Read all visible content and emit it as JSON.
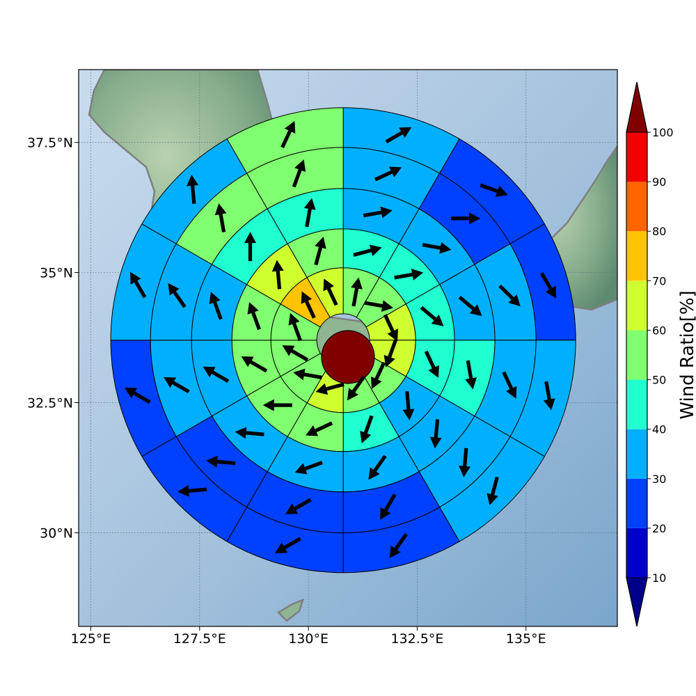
{
  "map": {
    "x_ticks": [
      "125°E",
      "127.5°E",
      "130°E",
      "132.5°E",
      "135°E"
    ],
    "y_ticks": [
      "37.5°N",
      "35°N",
      "32.5°N",
      "30°N"
    ],
    "lon_values": [
      125,
      127.5,
      130,
      132.5,
      135
    ],
    "lat_values": [
      37.5,
      35,
      32.5,
      30
    ],
    "extent": {
      "lon": [
        124.72,
        137.1
      ],
      "lat": [
        28.2,
        38.9
      ]
    },
    "center": {
      "lon": 130.8,
      "lat": 33.7
    },
    "grid": "dotted",
    "sea_color": "#9dbcd8",
    "land_color": "#7fa88a",
    "coastline_color": "#7f7f7f"
  },
  "colorbar": {
    "label": "Wind Ratio[%]",
    "tick_labels": [
      "10",
      "20",
      "30",
      "40",
      "50",
      "60",
      "70",
      "80",
      "90",
      "100"
    ],
    "levels": [
      10,
      20,
      30,
      40,
      50,
      60,
      70,
      80,
      90,
      100
    ],
    "colors": [
      "#0000cd",
      "#0040ff",
      "#00b0ff",
      "#20ffd0",
      "#80ff70",
      "#d0ff30",
      "#ffc400",
      "#ff6400",
      "#f50000"
    ],
    "under_color": "#00008b",
    "over_color": "#800000",
    "extend": "both"
  },
  "chart_data": {
    "type": "polar-sector",
    "sectors_per_ring": 12,
    "sector_order": "clockwise from north",
    "center_value": 100,
    "rings": [
      {
        "ring": 1,
        "values": [
          55,
          55,
          65,
          65,
          55,
          55,
          60,
          55,
          55,
          55,
          75,
          60
        ],
        "arrow_dir_deg": [
          10,
          100,
          155,
          200,
          205,
          215,
          255,
          280,
          300,
          340,
          335,
          335
        ]
      },
      {
        "ring": 2,
        "values": [
          40,
          40,
          40,
          40,
          35,
          45,
          55,
          55,
          50,
          50,
          60,
          55
        ],
        "arrow_dir_deg": [
          75,
          80,
          130,
          155,
          175,
          200,
          245,
          270,
          300,
          340,
          355,
          15
        ]
      },
      {
        "ring": 3,
        "values": [
          30,
          30,
          30,
          40,
          35,
          30,
          30,
          30,
          30,
          35,
          40,
          45
        ],
        "arrow_dir_deg": [
          80,
          100,
          130,
          170,
          185,
          215,
          250,
          275,
          300,
          340,
          0,
          10
        ]
      },
      {
        "ring": 4,
        "values": [
          30,
          20,
          30,
          30,
          30,
          20,
          20,
          20,
          30,
          30,
          50,
          50
        ],
        "arrow_dir_deg": [
          65,
          90,
          135,
          155,
          185,
          210,
          240,
          275,
          300,
          325,
          350,
          20
        ]
      },
      {
        "ring": 5,
        "values": [
          30,
          20,
          20,
          30,
          30,
          20,
          20,
          20,
          20,
          30,
          30,
          50
        ],
        "arrow_dir_deg": [
          60,
          110,
          150,
          170,
          195,
          215,
          240,
          265,
          300,
          330,
          355,
          25
        ]
      }
    ]
  }
}
